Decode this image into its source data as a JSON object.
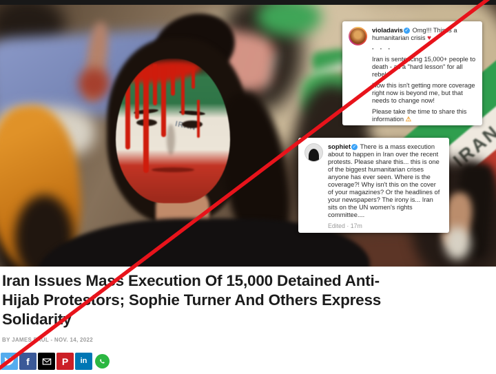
{
  "overlay": {
    "strike_color": "#e8131b"
  },
  "photo": {
    "placard_text": "IRAN",
    "face_text": "IRAN"
  },
  "ig_posts": [
    {
      "username": "violadavis",
      "verified_char": "✓",
      "caption_intro": "Omg!!! This is a humanitarian crisis",
      "heart_char": "♥",
      "dots": "· · ·",
      "para1": "Iran is sentencing 15,000+ people to death - as a \"hard lesson\" for all rebels",
      "para2": "How this isn't getting more coverage right now is beyond me, but that needs to change now!",
      "para3": "Please take the time to share this information",
      "warning_char": "⚠"
    },
    {
      "username": "sophiet",
      "verified_char": "✓",
      "caption": "There is a mass execution about to happen in Iran over the recent protests. Please share this... this is one of the biggest humanitarian crises anyone has ever seen. Where is the coverage?! Why isn't this on the cover of your magazines? Or the headlines of your newspapers? The irony is... Iran sits on the UN women's rights committee....",
      "meta": "Edited · 17m"
    }
  ],
  "article": {
    "headline_lines": [
      "Iran Issues Mass Execution Of 15,000 Detained Anti-",
      "Hijab Protestors; Sophie Turner And Others Express",
      "Solidarity"
    ],
    "byline": "BY JAMES PAUL - NOV. 14, 2022"
  },
  "share": {
    "icons": [
      {
        "name": "twitter",
        "bg": "#55acee",
        "glyph": ""
      },
      {
        "name": "facebook",
        "bg": "#3b5998",
        "glyph": "f"
      },
      {
        "name": "email",
        "bg": "#000000",
        "glyph": ""
      },
      {
        "name": "pinterest",
        "bg": "#cb2027",
        "glyph": "P"
      },
      {
        "name": "linkedin",
        "bg": "#0077b5",
        "glyph": "in"
      },
      {
        "name": "whatsapp",
        "bg": "#ffffff",
        "glyph": ""
      }
    ]
  }
}
